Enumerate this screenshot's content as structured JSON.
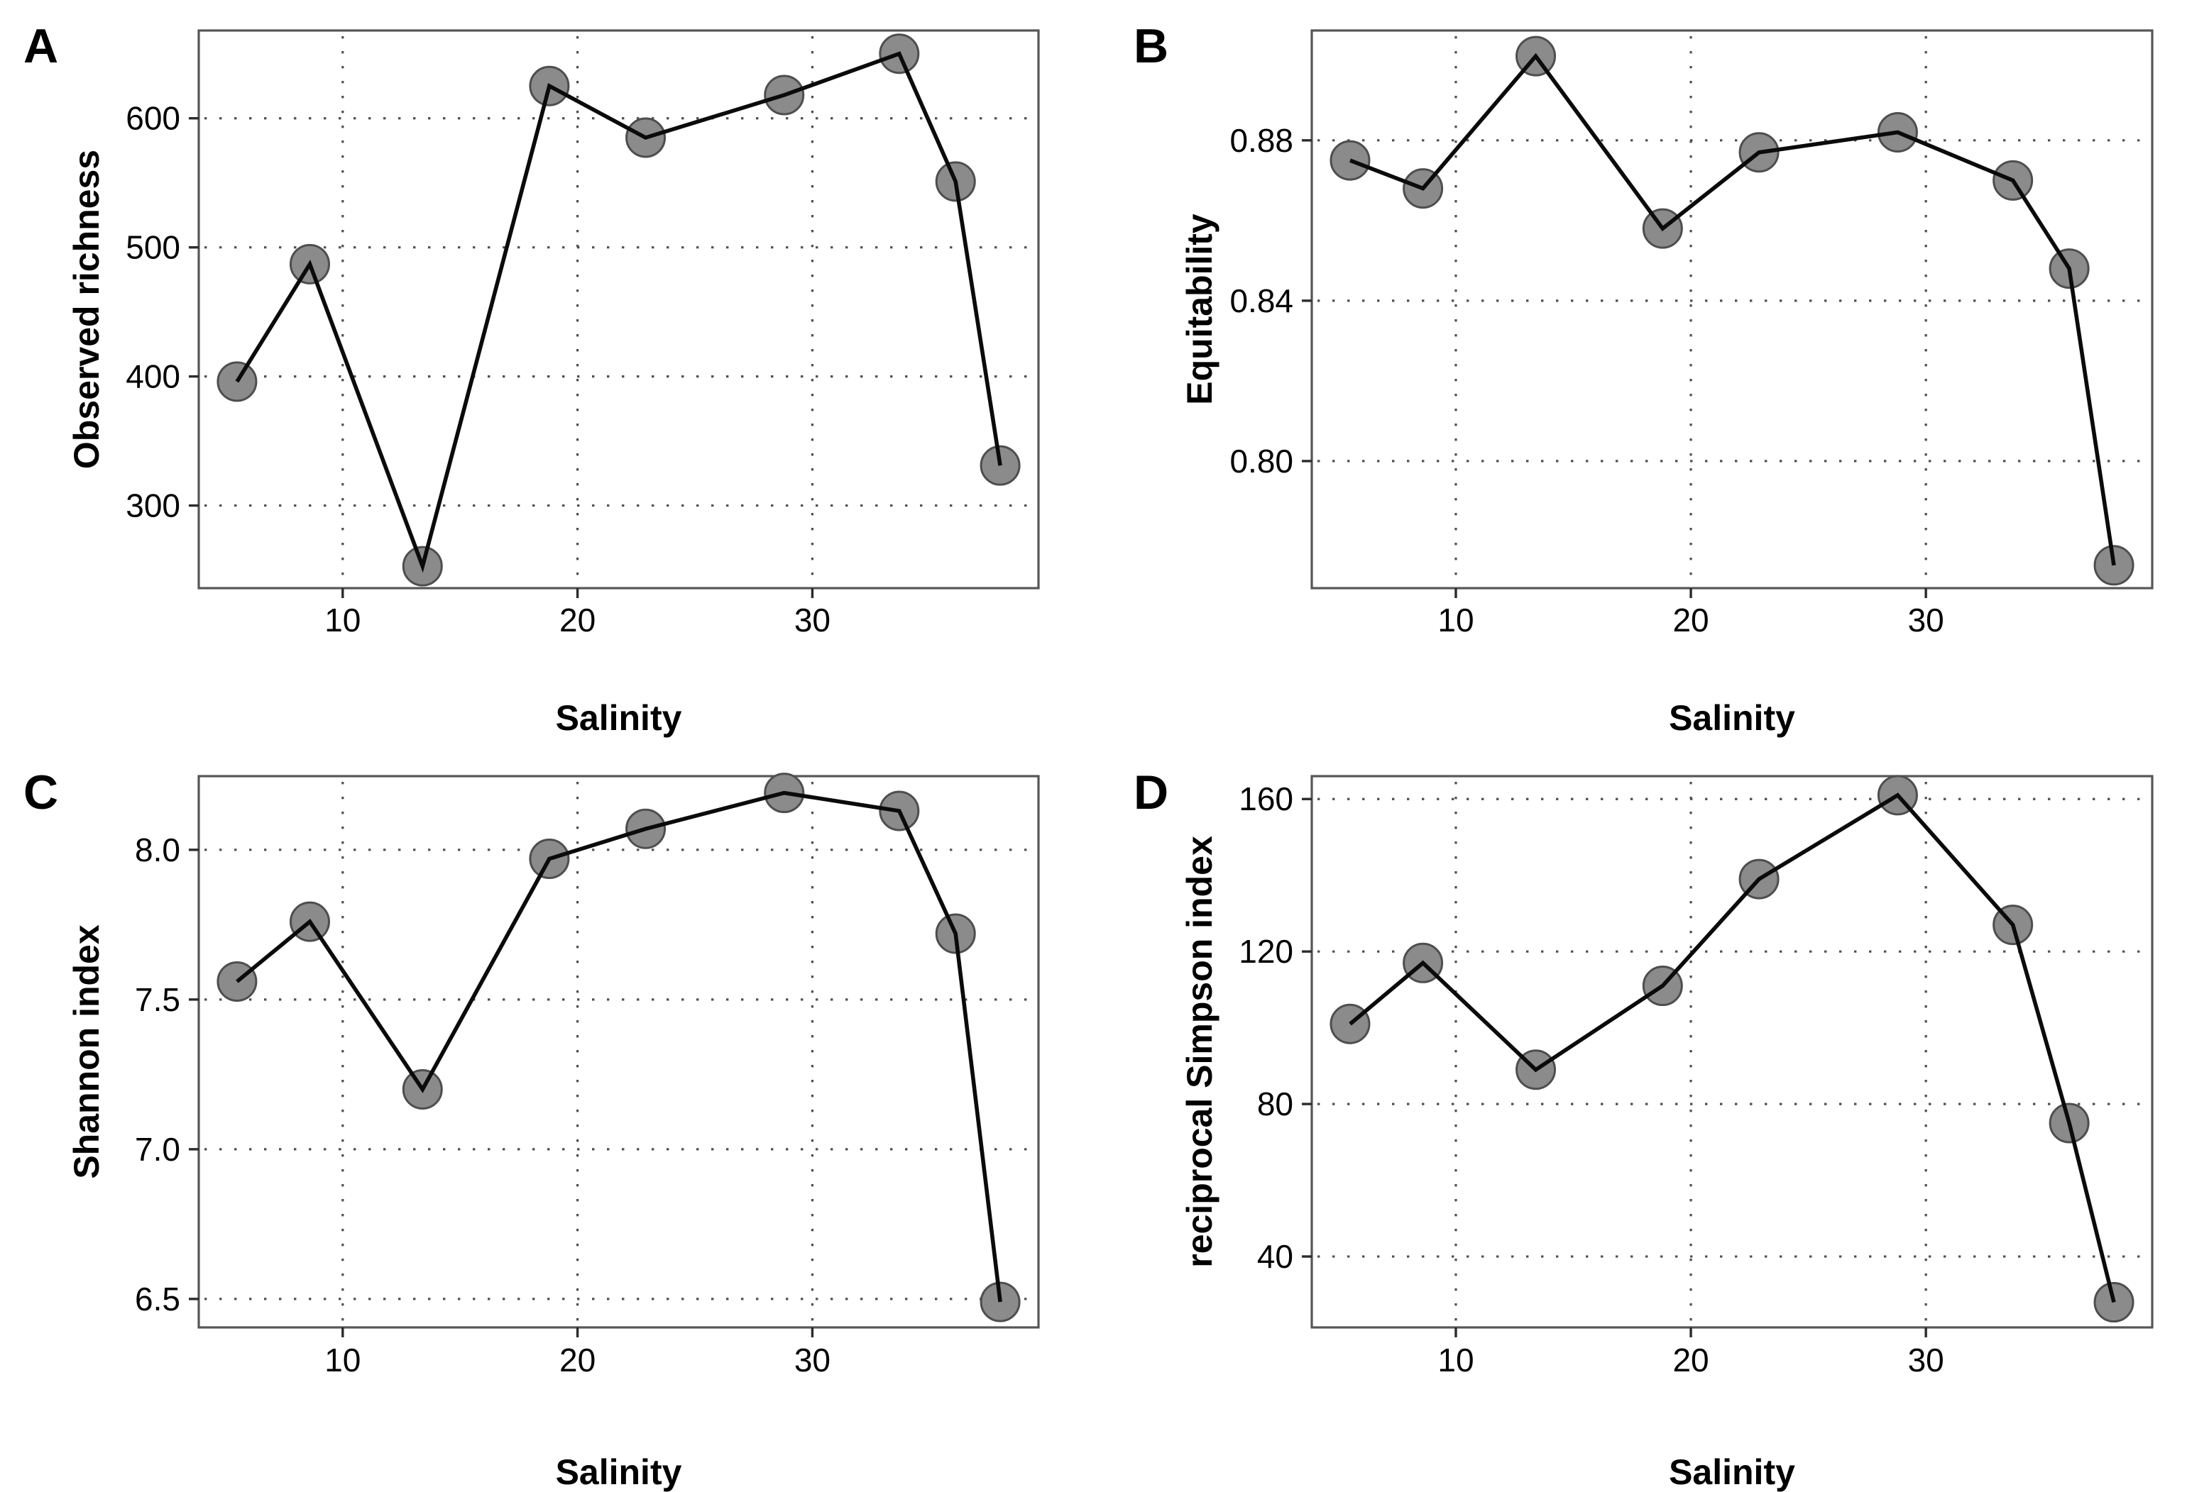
{
  "figure_title": "",
  "style": {
    "background": "#ffffff",
    "point_fill": "#8b8b8b",
    "point_stroke": "#4e4e4e",
    "line_color": "#0b0b0b",
    "grid_color": "#4f4f4f",
    "border_color": "#565656",
    "tick_color": "#2b2b2b",
    "text_color": "#000000"
  },
  "chart_data": {
    "type": "line",
    "grid": "dotted",
    "legend": "none",
    "x_variable": "Salinity",
    "x": [
      5.5,
      8.6,
      13.4,
      18.8,
      22.9,
      28.8,
      33.7,
      36.1,
      38.0
    ],
    "x_ticks": [
      10,
      20,
      30
    ],
    "x_tick_labels": [
      "10",
      "20",
      "30"
    ],
    "xlim": [
      3.87,
      39.63
    ],
    "panels": [
      {
        "letter": "A",
        "title": "",
        "xlabel": "Salinity",
        "ylabel": "Observed richness",
        "y": [
          396,
          487,
          253,
          625,
          585,
          618,
          650,
          551,
          331
        ],
        "y_ticks": [
          300,
          400,
          500,
          600
        ],
        "y_tick_labels": [
          "300",
          "400",
          "500",
          "600"
        ],
        "ylim": [
          236,
          668
        ]
      },
      {
        "letter": "B",
        "title": "",
        "xlabel": "Salinity",
        "ylabel": "Equitability",
        "y": [
          0.875,
          0.868,
          0.901,
          0.858,
          0.877,
          0.882,
          0.87,
          0.848,
          0.774
        ],
        "y_ticks": [
          0.8,
          0.84,
          0.88
        ],
        "y_tick_labels": [
          "0.80",
          "0.84",
          "0.88"
        ],
        "ylim": [
          0.7683,
          0.9074
        ]
      },
      {
        "letter": "C",
        "title": "",
        "xlabel": "Salinity",
        "ylabel": "Shannon index",
        "y": [
          7.56,
          7.76,
          7.2,
          7.97,
          8.07,
          8.19,
          8.13,
          7.72,
          6.49
        ],
        "y_ticks": [
          6.5,
          7.0,
          7.5,
          8.0
        ],
        "y_tick_labels": [
          "6.5",
          "7.0",
          "7.5",
          "8.0"
        ],
        "ylim": [
          6.405,
          8.246
        ]
      },
      {
        "letter": "D",
        "title": "",
        "xlabel": "Salinity",
        "ylabel": "reciprocal Simpson index",
        "y": [
          101,
          117,
          89,
          111,
          139,
          161,
          127,
          75,
          28
        ],
        "y_ticks": [
          40,
          80,
          120,
          160
        ],
        "y_tick_labels": [
          "40",
          "80",
          "120",
          "160"
        ],
        "ylim": [
          21.4,
          166.0
        ]
      }
    ]
  }
}
